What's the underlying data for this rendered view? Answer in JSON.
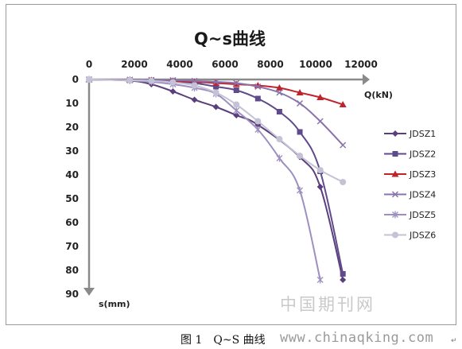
{
  "chart_data": {
    "type": "line",
    "title": "Q~s曲线",
    "xlabel": "Q(kN)",
    "ylabel": "s(mm)",
    "xlim": [
      0,
      12000
    ],
    "ylim": [
      0,
      90
    ],
    "x_ticks": [
      "0",
      "2000",
      "4000",
      "6000",
      "8000",
      "10000",
      "12000"
    ],
    "y_ticks": [
      "0",
      "10",
      "20",
      "30",
      "40",
      "50",
      "60",
      "70",
      "80",
      "90"
    ],
    "x_axis_position": "top",
    "y_axis_inverted": true,
    "grid": false,
    "legend_position": "right",
    "series": [
      {
        "name": "JDSZ1",
        "color": "#5b3f7d",
        "marker": "diamond",
        "x": [
          0,
          1800,
          2750,
          3700,
          4650,
          5600,
          6500,
          7450,
          9300,
          10200,
          11200
        ],
        "y": [
          0,
          0.5,
          2,
          5,
          8.5,
          11.5,
          15,
          19,
          32.5,
          45,
          84
        ]
      },
      {
        "name": "JDSZ2",
        "color": "#5f4a8b",
        "marker": "square",
        "x": [
          0,
          1800,
          2750,
          3700,
          4650,
          5600,
          6500,
          7450,
          8400,
          9300,
          10200,
          11200
        ],
        "y": [
          0,
          0.2,
          0.4,
          0.8,
          1.5,
          3,
          4.5,
          8,
          13.5,
          22,
          38.5,
          81.5
        ]
      },
      {
        "name": "JDSZ3",
        "color": "#c0242b",
        "marker": "triangle",
        "x": [
          0,
          1800,
          2750,
          3700,
          4650,
          5600,
          6500,
          7450,
          8400,
          9300,
          10200,
          11200
        ],
        "y": [
          0,
          0.1,
          0.3,
          0.6,
          1,
          1.5,
          2,
          2.5,
          3.5,
          5.5,
          7.5,
          10.5
        ]
      },
      {
        "name": "JDSZ4",
        "color": "#8a73ad",
        "marker": "x",
        "x": [
          0,
          1800,
          2750,
          3700,
          4650,
          5600,
          6500,
          7450,
          8400,
          9300,
          10200,
          11200
        ],
        "y": [
          0,
          0.1,
          0.2,
          0.3,
          0.6,
          1,
          1.5,
          3,
          5.5,
          10,
          17.5,
          27.5
        ]
      },
      {
        "name": "JDSZ5",
        "color": "#9d8fc0",
        "marker": "star",
        "x": [
          0,
          1800,
          2750,
          3700,
          4650,
          5600,
          6500,
          7450,
          8400,
          9300,
          10200
        ],
        "y": [
          0,
          0.4,
          1,
          2,
          3.5,
          6,
          13,
          21,
          33,
          46.5,
          84
        ]
      },
      {
        "name": "JDSZ6",
        "color": "#c4c3d6",
        "marker": "circle",
        "x": [
          0,
          1800,
          2750,
          3700,
          4650,
          5600,
          6500,
          7450,
          8400,
          9300,
          10200,
          11200
        ],
        "y": [
          0,
          0.3,
          0.6,
          1.2,
          2.5,
          5.5,
          10.5,
          17.5,
          25,
          32,
          38,
          43
        ]
      }
    ],
    "watermark": "中国期刊网"
  },
  "caption": {
    "figure_number": "图 1",
    "title": "Q~S 曲线"
  },
  "site_watermark": "www.chinaqking.com",
  "return_mark": "↵"
}
